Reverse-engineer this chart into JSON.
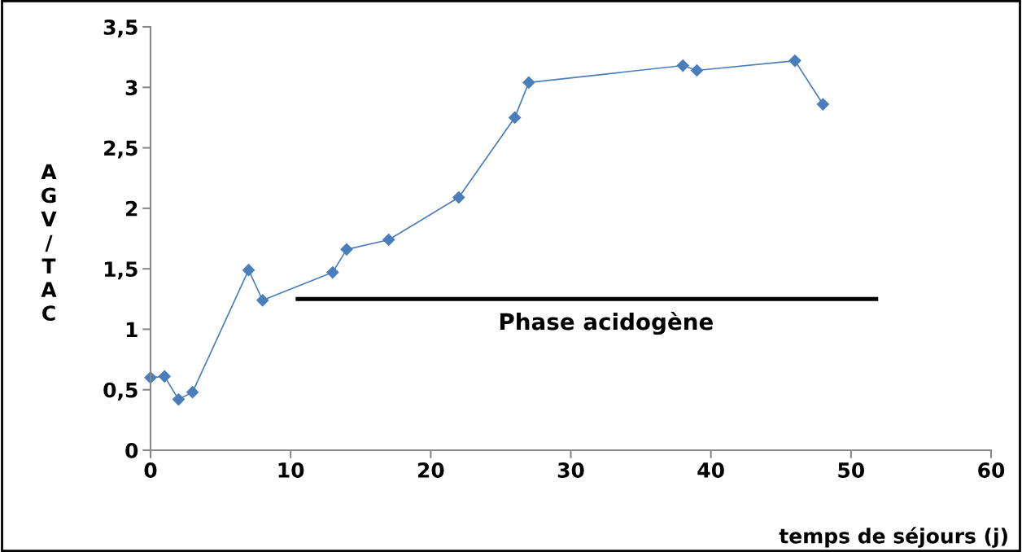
{
  "chart_data": {
    "type": "line",
    "xlabel": "temps de séjours (j)",
    "ylabel": "AGV/TAC",
    "series": [
      {
        "color": "#4a7ebb",
        "marker": "diamond",
        "x": [
          0,
          1,
          2,
          3,
          7,
          8,
          13,
          14,
          17,
          22,
          26,
          27,
          38,
          39,
          46,
          48
        ],
        "values": [
          0.6,
          0.61,
          0.42,
          0.48,
          1.49,
          1.24,
          1.47,
          1.66,
          1.74,
          2.09,
          2.75,
          3.04,
          3.18,
          3.14,
          3.22,
          2.86
        ]
      },
      {
        "color": "#000000",
        "marker": "none",
        "x": [
          10.5,
          51.8
        ],
        "values": [
          1.25,
          1.25
        ]
      }
    ],
    "annotations": [
      "Phase acidogène"
    ],
    "xlim": [
      0,
      60
    ],
    "xticks": [
      0,
      10,
      20,
      30,
      40,
      50,
      60
    ],
    "ylim": [
      0,
      3.5
    ],
    "yticks": [
      {
        "value": 0,
        "label": "0"
      },
      {
        "value": 0.5,
        "label": "0,5"
      },
      {
        "value": 1,
        "label": "1"
      },
      {
        "value": 1.5,
        "label": "1,5"
      },
      {
        "value": 2,
        "label": "2"
      },
      {
        "value": 2.5,
        "label": "2,5"
      },
      {
        "value": 3,
        "label": "3"
      },
      {
        "value": 3.5,
        "label": "3,5"
      }
    ],
    "grid": false,
    "legend": false
  }
}
